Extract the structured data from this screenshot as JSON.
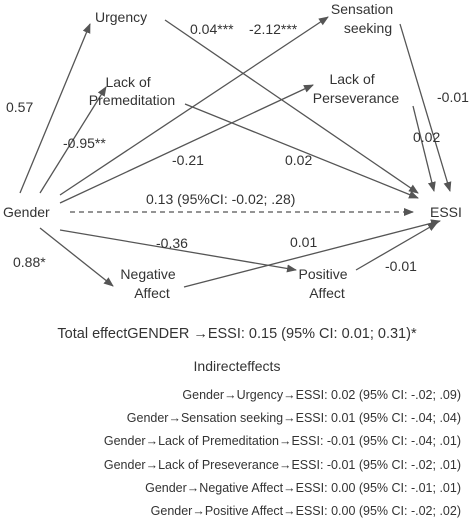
{
  "nodes": {
    "gender": "Gender",
    "essi": "ESSI",
    "urgency": "Urgency",
    "sensation_seeking": [
      "Sensation",
      "seeking"
    ],
    "lack_of_premeditation": [
      "Lack of",
      "Premeditation"
    ],
    "lack_of_perseverance": [
      "Lack of",
      "Perseverance"
    ],
    "negative_affect": [
      "Negative",
      "Affect"
    ],
    "positive_affect": [
      "Positive",
      "Affect"
    ]
  },
  "paths": {
    "gender_urgency": "0.57",
    "gender_premeditation": "-0.95**",
    "gender_negative_affect": "0.88*",
    "gender_sensation_seeking": "-2.12***",
    "gender_perseverance": "-0.21",
    "gender_positive_affect": "-0.36",
    "urgency_essi": "0.04***",
    "sensation_seeking_essi": "-0.01",
    "premeditation_essi": "0.02",
    "perseverance_essi": "0.02",
    "negative_affect_essi": "0.01",
    "positive_affect_essi": "-0.01",
    "direct_gender_essi": "0.13 (95%CI: -0.02; .28)"
  },
  "total_effect": "Total effectGENDER →ESSI: 0.15 (95% CI: 0.01; 0.31)*",
  "indirect_title": "Indirecteffects",
  "indirect_effects": [
    "Gender→Urgency→ESSI: 0.02 (95% CI: -.02; .09)",
    "Gender→Sensation seeking→ESSI: 0.01 (95% CI: -.04; .04)",
    "Gender→Lack of Premeditation→ESSI: -0.01 (95% CI: -.04; .01)",
    "Gender→Lack of Preseverance→ESSI: -0.01 (95% CI: -.02; .01)",
    "Gender→Negative Affect→ESSI: 0.00 (95% CI: -.01; .01)",
    "Gender→Positive Affect→ESSI: 0.00 (95% CI: -.02; .02)"
  ],
  "colors": {
    "stroke": "#555555",
    "text": "#333333",
    "background": "#ffffff"
  }
}
